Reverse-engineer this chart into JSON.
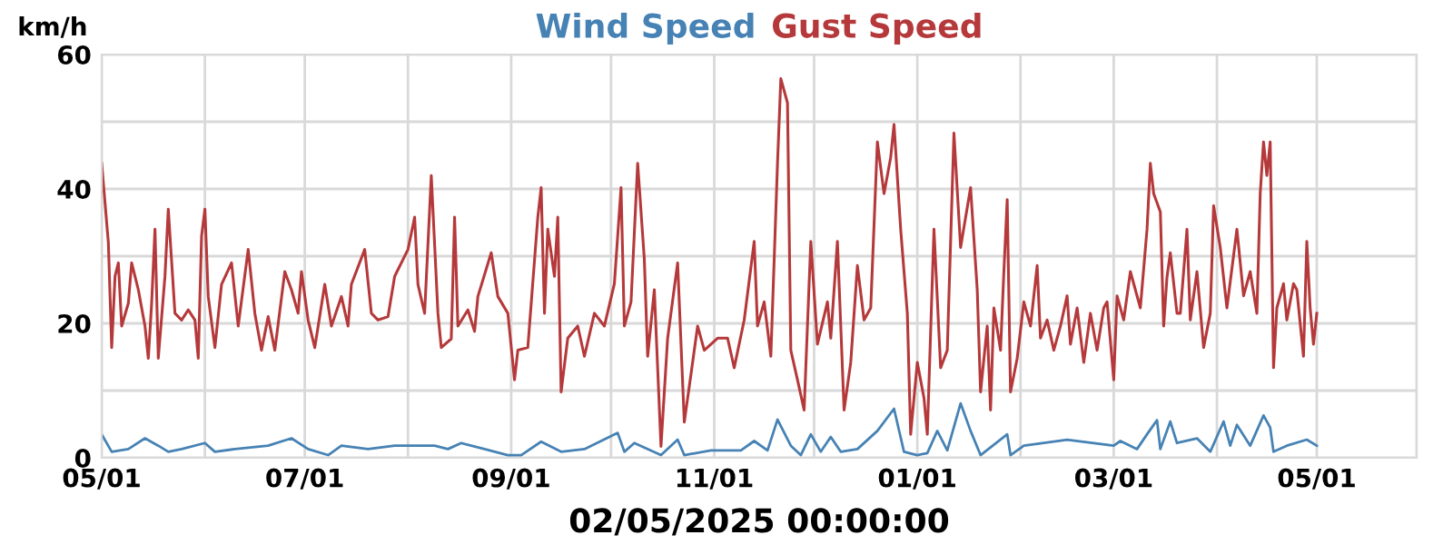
{
  "chart_data": {
    "type": "line",
    "ylabel": "km/h",
    "xlabel": "02/05/2025 00:00:00",
    "legend": "top",
    "grid": true,
    "marker": "none",
    "line_style": "solid",
    "xlim": [
      "2024-05-01",
      "2025-05-31"
    ],
    "xticks": [
      {
        "value": "2024-05-01",
        "label": "05/01"
      },
      {
        "value": "2024-06-01",
        "label": null
      },
      {
        "value": "2024-07-01",
        "label": "07/01"
      },
      {
        "value": "2024-08-01",
        "label": null
      },
      {
        "value": "2024-09-01",
        "label": "09/01"
      },
      {
        "value": "2024-10-01",
        "label": null
      },
      {
        "value": "2024-11-01",
        "label": "11/01"
      },
      {
        "value": "2024-12-01",
        "label": null
      },
      {
        "value": "2025-01-01",
        "label": "01/01"
      },
      {
        "value": "2025-02-01",
        "label": null
      },
      {
        "value": "2025-03-01",
        "label": "03/01"
      },
      {
        "value": "2025-04-01",
        "label": null
      },
      {
        "value": "2025-05-01",
        "label": "05/01"
      },
      {
        "value": "2025-05-31",
        "label": null
      }
    ],
    "ylim": [
      0,
      60
    ],
    "yticks": [
      0,
      {
        "value": 10,
        "label": null
      },
      20,
      {
        "value": 30,
        "label": null
      },
      40,
      {
        "value": 50,
        "label": null
      },
      60
    ],
    "series": [
      {
        "name": "Wind Speed",
        "color": "#4682b4",
        "x": [
          "2024-05-01",
          "2024-05-04",
          "2024-05-09",
          "2024-05-14",
          "2024-05-18",
          "2024-05-21",
          "2024-05-25",
          "2024-06-01",
          "2024-06-04",
          "2024-06-10",
          "2024-06-20",
          "2024-06-27",
          "2024-07-02",
          "2024-07-08",
          "2024-07-12",
          "2024-07-20",
          "2024-07-28",
          "2024-08-04",
          "2024-08-09",
          "2024-08-13",
          "2024-08-17",
          "2024-08-24",
          "2024-08-31",
          "2024-09-04",
          "2024-09-10",
          "2024-09-16",
          "2024-09-23",
          "2024-10-03",
          "2024-10-05",
          "2024-10-08",
          "2024-10-16",
          "2024-10-21",
          "2024-10-23",
          "2024-10-31",
          "2024-11-09",
          "2024-11-13",
          "2024-11-17",
          "2024-11-20",
          "2024-11-24",
          "2024-11-27",
          "2024-11-30",
          "2024-12-03",
          "2024-12-06",
          "2024-12-09",
          "2024-12-14",
          "2024-12-20",
          "2024-12-25",
          "2024-12-28",
          "2025-01-01",
          "2025-01-04",
          "2025-01-07",
          "2025-01-10",
          "2025-01-14",
          "2025-01-17",
          "2025-01-20",
          "2025-01-28",
          "2025-01-29",
          "2025-02-02",
          "2025-02-15",
          "2025-03-01",
          "2025-03-03",
          "2025-03-08",
          "2025-03-11",
          "2025-03-14",
          "2025-03-15",
          "2025-03-18",
          "2025-03-20",
          "2025-03-26",
          "2025-03-30",
          "2025-04-03",
          "2025-04-05",
          "2025-04-07",
          "2025-04-11",
          "2025-04-15",
          "2025-04-17",
          "2025-04-18",
          "2025-04-22",
          "2025-04-28",
          "2025-05-01"
        ],
        "values": [
          3.5,
          0.9,
          1.3,
          2.9,
          1.8,
          0.9,
          1.3,
          2.2,
          0.9,
          1.3,
          1.8,
          2.9,
          1.3,
          0.4,
          1.8,
          1.3,
          1.8,
          1.8,
          1.8,
          1.3,
          2.2,
          1.3,
          0.4,
          0.4,
          2.4,
          0.9,
          1.3,
          3.7,
          0.9,
          2.2,
          0.4,
          2.7,
          0.4,
          1.1,
          1.1,
          2.5,
          1.1,
          5.7,
          1.8,
          0.4,
          3.5,
          0.9,
          3.1,
          0.9,
          1.3,
          4,
          7.3,
          0.9,
          0.4,
          0.7,
          4,
          1.1,
          8.1,
          4,
          0.4,
          3.5,
          0.4,
          1.8,
          2.7,
          1.8,
          2.5,
          1.3,
          3.5,
          5.6,
          1.3,
          5.4,
          2.2,
          2.9,
          0.9,
          5.4,
          1.8,
          4.9,
          1.8,
          6.3,
          4.5,
          0.9,
          1.8,
          2.7,
          1.8
        ]
      },
      {
        "name": "Gust Speed",
        "color": "#b5393b",
        "x": [
          "2024-05-01",
          "2024-05-03",
          "2024-05-04",
          "2024-05-05",
          "2024-05-06",
          "2024-05-07",
          "2024-05-09",
          "2024-05-10",
          "2024-05-12",
          "2024-05-14",
          "2024-05-15",
          "2024-05-16",
          "2024-05-17",
          "2024-05-18",
          "2024-05-20",
          "2024-05-21",
          "2024-05-23",
          "2024-05-25",
          "2024-05-27",
          "2024-05-29",
          "2024-05-30",
          "2024-05-31",
          "2024-06-01",
          "2024-06-02",
          "2024-06-04",
          "2024-06-06",
          "2024-06-09",
          "2024-06-11",
          "2024-06-14",
          "2024-06-16",
          "2024-06-18",
          "2024-06-20",
          "2024-06-22",
          "2024-06-25",
          "2024-06-27",
          "2024-06-29",
          "2024-06-30",
          "2024-07-02",
          "2024-07-04",
          "2024-07-07",
          "2024-07-09",
          "2024-07-12",
          "2024-07-14",
          "2024-07-15",
          "2024-07-19",
          "2024-07-21",
          "2024-07-23",
          "2024-07-26",
          "2024-07-28",
          "2024-08-01",
          "2024-08-03",
          "2024-08-04",
          "2024-08-06",
          "2024-08-08",
          "2024-08-10",
          "2024-08-11",
          "2024-08-14",
          "2024-08-15",
          "2024-08-16",
          "2024-08-19",
          "2024-08-21",
          "2024-08-22",
          "2024-08-26",
          "2024-08-28",
          "2024-08-31",
          "2024-09-02",
          "2024-09-03",
          "2024-09-06",
          "2024-09-09",
          "2024-09-10",
          "2024-09-11",
          "2024-09-12",
          "2024-09-14",
          "2024-09-15",
          "2024-09-16",
          "2024-09-18",
          "2024-09-21",
          "2024-09-23",
          "2024-09-26",
          "2024-09-29",
          "2024-10-02",
          "2024-10-04",
          "2024-10-05",
          "2024-10-07",
          "2024-10-09",
          "2024-10-11",
          "2024-10-12",
          "2024-10-14",
          "2024-10-16",
          "2024-10-18",
          "2024-10-21",
          "2024-10-23",
          "2024-10-25",
          "2024-10-27",
          "2024-10-29",
          "2024-11-02",
          "2024-11-05",
          "2024-11-07",
          "2024-11-10",
          "2024-11-13",
          "2024-11-14",
          "2024-11-16",
          "2024-11-18",
          "2024-11-20",
          "2024-11-21",
          "2024-11-23",
          "2024-11-24",
          "2024-11-26",
          "2024-11-28",
          "2024-11-30",
          "2024-12-02",
          "2024-12-05",
          "2024-12-06",
          "2024-12-08",
          "2024-12-10",
          "2024-12-12",
          "2024-12-14",
          "2024-12-16",
          "2024-12-18",
          "2024-12-20",
          "2024-12-22",
          "2024-12-24",
          "2024-12-25",
          "2024-12-27",
          "2024-12-29",
          "2024-12-30",
          "2025-01-01",
          "2025-01-03",
          "2025-01-04",
          "2025-01-06",
          "2025-01-08",
          "2025-01-10",
          "2025-01-12",
          "2025-01-14",
          "2025-01-17",
          "2025-01-19",
          "2025-01-20",
          "2025-01-22",
          "2025-01-23",
          "2025-01-24",
          "2025-01-26",
          "2025-01-27",
          "2025-01-28",
          "2025-01-29",
          "2025-01-31",
          "2025-02-02",
          "2025-02-04",
          "2025-02-06",
          "2025-02-07",
          "2025-02-09",
          "2025-02-11",
          "2025-02-13",
          "2025-02-15",
          "2025-02-16",
          "2025-02-18",
          "2025-02-20",
          "2025-02-22",
          "2025-02-24",
          "2025-02-26",
          "2025-02-27",
          "2025-03-01",
          "2025-03-02",
          "2025-03-04",
          "2025-03-06",
          "2025-03-09",
          "2025-03-11",
          "2025-03-12",
          "2025-03-13",
          "2025-03-15",
          "2025-03-16",
          "2025-03-17",
          "2025-03-18",
          "2025-03-20",
          "2025-03-21",
          "2025-03-23",
          "2025-03-24",
          "2025-03-26",
          "2025-03-28",
          "2025-03-30",
          "2025-03-31",
          "2025-04-02",
          "2025-04-04",
          "2025-04-07",
          "2025-04-09",
          "2025-04-11",
          "2025-04-13",
          "2025-04-14",
          "2025-04-15",
          "2025-04-16",
          "2025-04-17",
          "2025-04-18",
          "2025-04-19",
          "2025-04-21",
          "2025-04-22",
          "2025-04-24",
          "2025-04-25",
          "2025-04-27",
          "2025-04-28",
          "2025-04-29",
          "2025-04-30",
          "2025-05-01"
        ],
        "values": [
          43.8,
          32,
          16.4,
          27,
          29,
          19.6,
          23,
          29,
          25,
          19.6,
          14.8,
          23,
          34,
          14.8,
          27,
          37,
          21.5,
          20.5,
          22,
          20.5,
          14.8,
          33,
          37,
          24,
          16.4,
          25.8,
          29,
          19.6,
          31,
          21.5,
          16,
          21,
          16,
          27.7,
          25,
          21.5,
          27.7,
          20.5,
          16.4,
          25.8,
          19.6,
          24,
          19.6,
          25.8,
          31,
          21.5,
          20.5,
          21,
          27,
          31,
          35.8,
          25.8,
          21.5,
          42,
          21.5,
          16.4,
          17.7,
          35.8,
          19.6,
          22,
          18.8,
          24,
          30.5,
          24,
          21.5,
          11.6,
          16,
          16.4,
          35.8,
          40.2,
          21.5,
          34,
          27,
          35.8,
          9.8,
          17.8,
          19.6,
          15.1,
          21.5,
          19.6,
          25.9,
          40.2,
          19.6,
          23.2,
          43.8,
          29.5,
          15.1,
          25,
          1.7,
          17.8,
          29,
          5.3,
          12.4,
          19.6,
          16,
          17.8,
          17.8,
          13.4,
          20.5,
          32.2,
          19.6,
          23.2,
          15.1,
          43.8,
          56.4,
          52.8,
          16,
          11.6,
          7.1,
          32.2,
          16.9,
          23.2,
          17.8,
          32.2,
          7.1,
          14.2,
          28.6,
          20.5,
          22.3,
          47,
          39.3,
          44.7,
          49.6,
          34,
          21.5,
          3.5,
          14.2,
          8.9,
          3.5,
          34,
          13.4,
          16,
          48.3,
          31.3,
          40.2,
          25,
          9.8,
          19.6,
          7.1,
          22.3,
          16,
          27.7,
          38.4,
          9.8,
          14.8,
          23.2,
          19.6,
          28.6,
          17.8,
          20.5,
          16,
          19.6,
          24.1,
          16.9,
          22.3,
          14.2,
          21.5,
          16,
          22.3,
          23.2,
          11.6,
          24.1,
          20.5,
          27.7,
          22.3,
          34,
          43.8,
          39.3,
          36.6,
          19.6,
          26.9,
          30.5,
          21.5,
          21.5,
          34,
          20.5,
          27.7,
          16.4,
          21.5,
          37.5,
          31.3,
          22.3,
          34,
          24.1,
          27.7,
          21.5,
          39.3,
          47,
          42,
          47,
          13.4,
          22.3,
          25.9,
          20.5,
          25.9,
          25,
          15.1,
          32.2,
          22.3,
          16.9,
          21.5
        ]
      }
    ]
  }
}
